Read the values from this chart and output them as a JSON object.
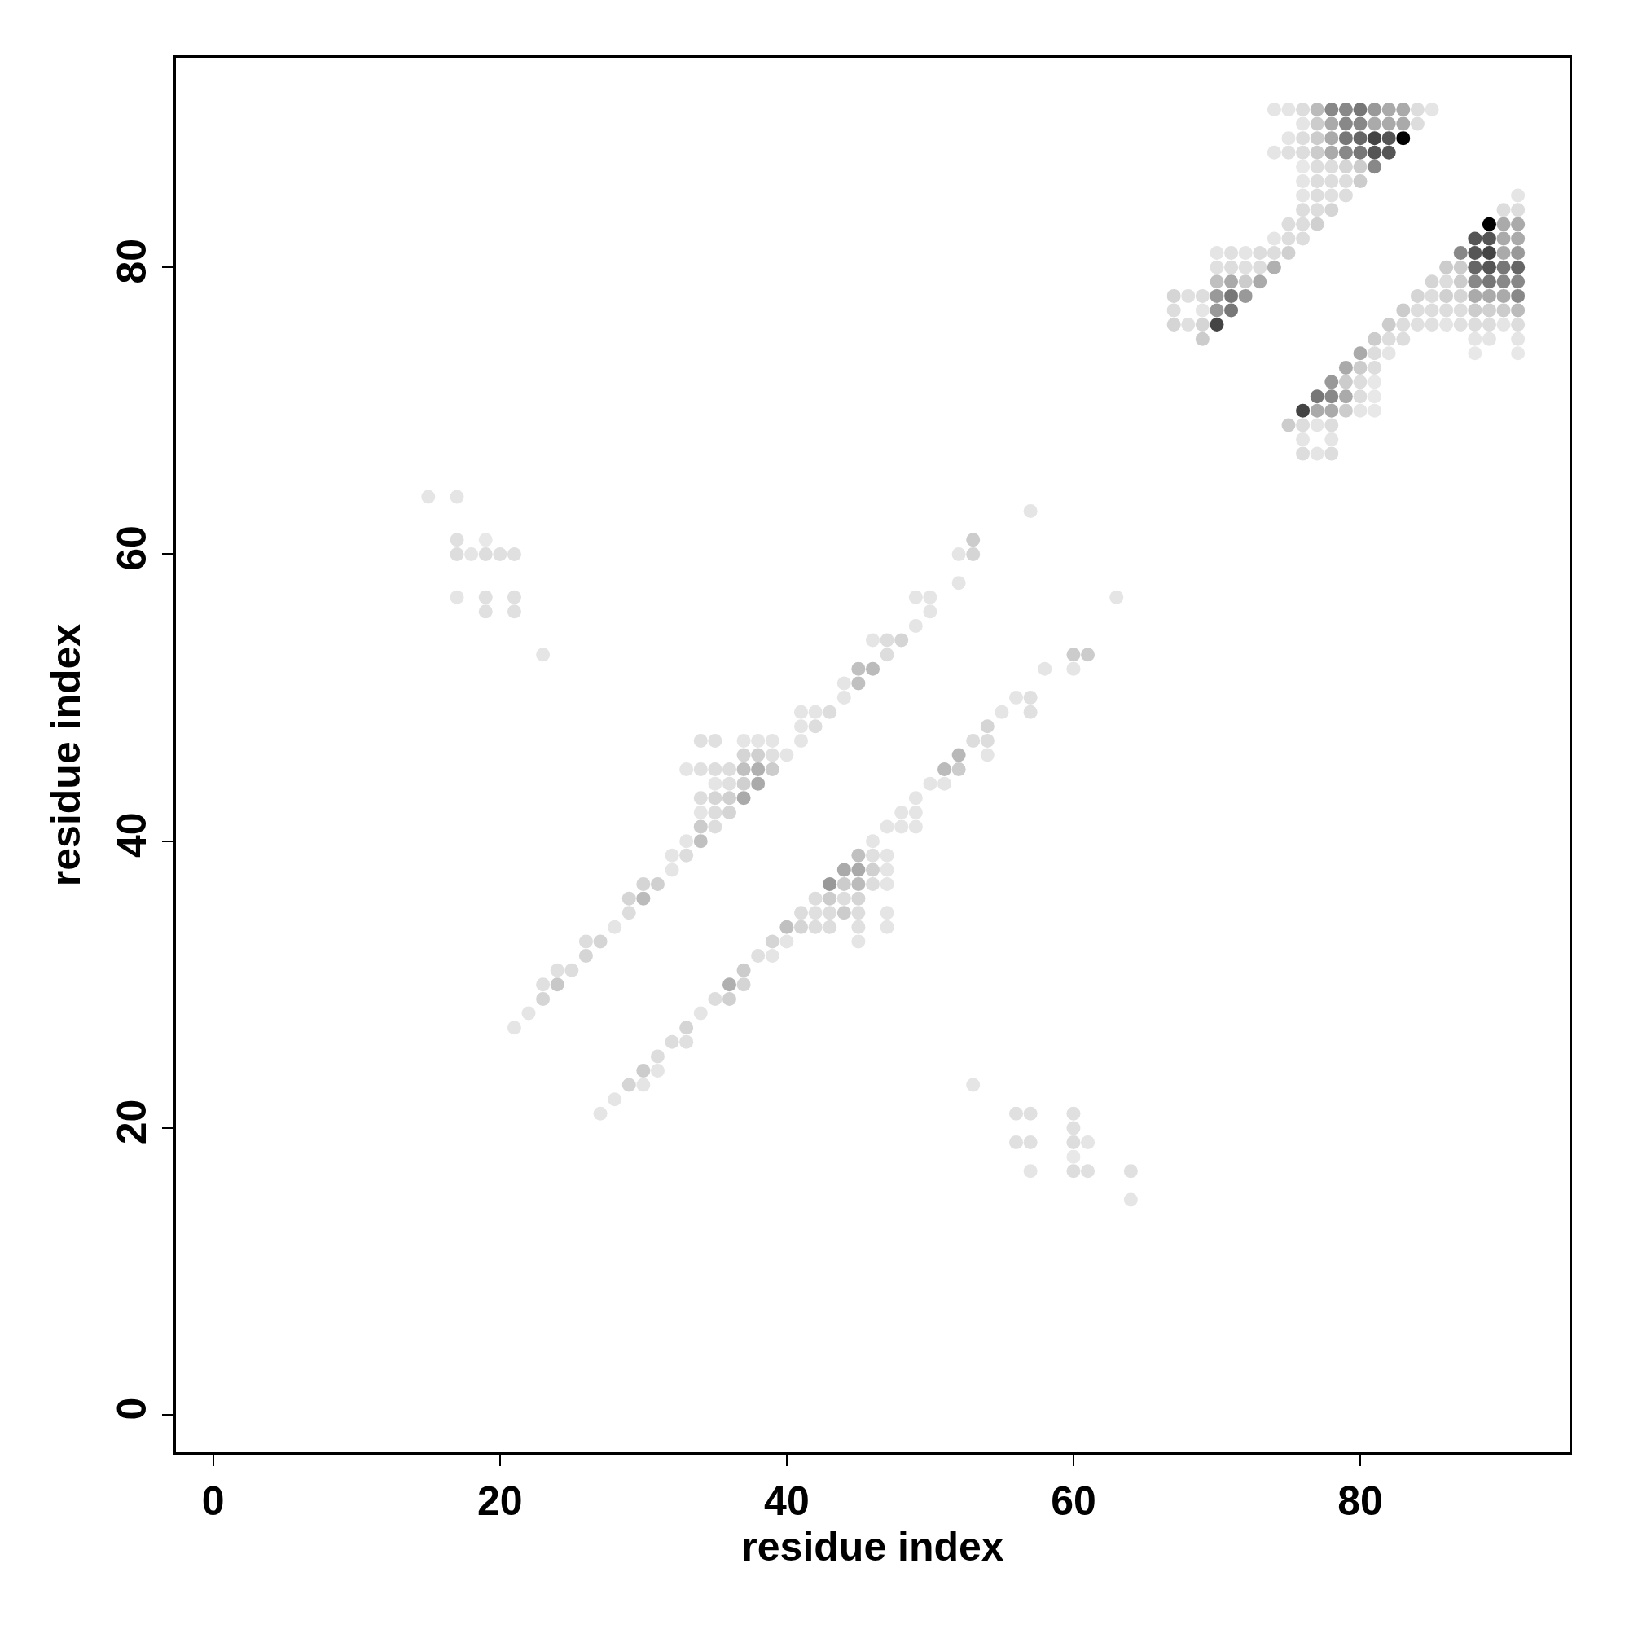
{
  "chart_data": {
    "type": "scatter",
    "xlabel": "residue index",
    "ylabel": "residue index",
    "marker": "circle",
    "xlim": [
      -2.6,
      94.6
    ],
    "ylim": [
      -2.6,
      94.6
    ],
    "xticks": [
      0,
      20,
      40,
      60,
      80
    ],
    "yticks": [
      0,
      20,
      40,
      60,
      80
    ],
    "x": [
      74,
      75,
      76,
      77,
      78,
      79,
      80,
      81,
      82,
      83,
      84,
      85,
      76,
      77,
      78,
      79,
      80,
      81,
      82,
      83,
      84,
      75,
      76,
      77,
      78,
      79,
      80,
      81,
      82,
      83,
      74,
      75,
      76,
      77,
      78,
      79,
      80,
      81,
      82,
      76,
      77,
      78,
      79,
      80,
      81,
      76,
      77,
      78,
      79,
      80,
      76,
      77,
      78,
      79,
      91,
      76,
      77,
      78,
      90,
      91,
      75,
      76,
      77,
      89,
      90,
      91,
      74,
      75,
      76,
      88,
      89,
      90,
      91,
      70,
      71,
      72,
      73,
      74,
      75,
      87,
      88,
      89,
      90,
      91,
      70,
      71,
      72,
      73,
      74,
      86,
      87,
      88,
      89,
      90,
      91,
      70,
      71,
      72,
      73,
      85,
      86,
      87,
      88,
      89,
      90,
      91,
      67,
      68,
      69,
      70,
      71,
      72,
      84,
      85,
      86,
      87,
      88,
      89,
      90,
      91,
      67,
      69,
      70,
      71,
      83,
      84,
      85,
      86,
      87,
      88,
      89,
      90,
      91,
      67,
      68,
      69,
      70,
      82,
      83,
      84,
      85,
      86,
      87,
      88,
      89,
      90,
      91,
      69,
      81,
      82,
      83,
      88,
      89,
      91,
      80,
      81,
      82,
      88,
      91,
      79,
      80,
      81,
      78,
      79,
      80,
      81,
      77,
      78,
      79,
      80,
      81,
      76,
      77,
      78,
      79,
      80,
      81,
      75,
      76,
      77,
      78,
      76,
      78,
      76,
      77,
      78,
      15,
      17,
      57,
      17,
      19,
      53,
      17,
      18,
      19,
      20,
      21,
      52,
      53,
      52,
      17,
      19,
      21,
      49,
      50,
      63,
      19,
      21,
      50,
      49,
      46,
      47,
      48,
      23,
      47,
      60,
      61,
      45,
      46,
      58,
      60,
      44,
      45,
      44,
      56,
      57,
      41,
      42,
      43,
      55,
      57,
      41,
      42,
      54,
      34,
      35,
      37,
      38,
      39,
      41,
      53,
      54,
      37,
      38,
      39,
      40,
      52,
      54,
      33,
      34,
      35,
      36,
      37,
      38,
      39,
      51,
      52,
      35,
      36,
      37,
      38,
      50,
      51,
      34,
      35,
      36,
      37,
      49,
      34,
      35,
      36,
      48,
      49,
      34,
      35,
      47,
      48,
      49,
      33,
      34,
      46,
      32,
      33,
      45,
      46,
      47,
      32,
      44,
      45,
      46,
      47,
      30,
      31,
      43,
      44,
      45,
      46,
      47,
      29,
      30,
      42,
      43,
      44,
      45,
      29,
      41,
      42,
      43,
      44,
      45,
      47,
      28,
      40,
      41,
      42,
      43,
      45,
      47,
      26,
      27,
      39,
      40,
      45,
      26,
      38,
      39,
      24,
      25,
      37,
      23,
      24,
      36,
      37,
      23,
      35,
      36,
      22,
      34,
      21,
      33,
      32,
      33,
      31,
      30,
      31,
      29,
      30,
      53,
      28,
      27,
      56,
      57,
      60,
      60,
      56,
      57,
      60,
      61,
      60,
      57,
      60,
      61,
      64,
      64
    ],
    "values": [
      91,
      91,
      91,
      91,
      91,
      91,
      91,
      91,
      91,
      91,
      91,
      91,
      90,
      90,
      90,
      90,
      90,
      90,
      90,
      90,
      90,
      89,
      89,
      89,
      89,
      89,
      89,
      89,
      89,
      89,
      88,
      88,
      88,
      88,
      88,
      88,
      88,
      88,
      88,
      87,
      87,
      87,
      87,
      87,
      87,
      86,
      86,
      86,
      86,
      86,
      85,
      85,
      85,
      85,
      85,
      84,
      84,
      84,
      84,
      84,
      83,
      83,
      83,
      83,
      83,
      83,
      82,
      82,
      82,
      82,
      82,
      82,
      82,
      81,
      81,
      81,
      81,
      81,
      81,
      81,
      81,
      81,
      81,
      81,
      80,
      80,
      80,
      80,
      80,
      80,
      80,
      80,
      80,
      80,
      80,
      79,
      79,
      79,
      79,
      79,
      79,
      79,
      79,
      79,
      79,
      79,
      78,
      78,
      78,
      78,
      78,
      78,
      78,
      78,
      78,
      78,
      78,
      78,
      78,
      78,
      77,
      77,
      77,
      77,
      77,
      77,
      77,
      77,
      77,
      77,
      77,
      77,
      77,
      76,
      76,
      76,
      76,
      76,
      76,
      76,
      76,
      76,
      76,
      76,
      76,
      76,
      76,
      75,
      75,
      75,
      75,
      75,
      75,
      75,
      74,
      74,
      74,
      74,
      74,
      73,
      73,
      73,
      72,
      72,
      72,
      72,
      71,
      71,
      71,
      71,
      71,
      70,
      70,
      70,
      70,
      70,
      70,
      69,
      69,
      69,
      69,
      68,
      68,
      67,
      67,
      67,
      64,
      64,
      63,
      61,
      61,
      61,
      60,
      60,
      60,
      60,
      60,
      60,
      60,
      58,
      57,
      57,
      57,
      57,
      57,
      57,
      56,
      56,
      56,
      55,
      54,
      54,
      54,
      53,
      53,
      53,
      53,
      52,
      52,
      52,
      52,
      51,
      51,
      50,
      50,
      50,
      49,
      49,
      49,
      49,
      49,
      48,
      48,
      48,
      47,
      47,
      47,
      47,
      47,
      47,
      47,
      47,
      46,
      46,
      46,
      46,
      46,
      46,
      45,
      45,
      45,
      45,
      45,
      45,
      45,
      45,
      45,
      44,
      44,
      44,
      44,
      44,
      44,
      43,
      43,
      43,
      43,
      43,
      42,
      42,
      42,
      42,
      42,
      41,
      41,
      41,
      41,
      41,
      40,
      40,
      40,
      39,
      39,
      39,
      39,
      39,
      38,
      38,
      38,
      38,
      38,
      37,
      37,
      37,
      37,
      37,
      37,
      37,
      36,
      36,
      36,
      36,
      36,
      36,
      35,
      35,
      35,
      35,
      35,
      35,
      35,
      34,
      34,
      34,
      34,
      34,
      34,
      34,
      33,
      33,
      33,
      33,
      33,
      32,
      32,
      32,
      31,
      31,
      31,
      30,
      30,
      30,
      30,
      29,
      29,
      29,
      28,
      28,
      27,
      27,
      26,
      26,
      25,
      24,
      24,
      23,
      23,
      23,
      22,
      21,
      21,
      21,
      21,
      20,
      19,
      19,
      19,
      19,
      18,
      17,
      17,
      17,
      17,
      15
    ],
    "colors": [
      "#e5e5e5",
      "#e5e5e5",
      "#dddddd",
      "#bbbbbb",
      "#888888",
      "#888888",
      "#777777",
      "#999999",
      "#aaaaaa",
      "#aaaaaa",
      "#dddddd",
      "#e5e5e5",
      "#e5e5e5",
      "#cccccc",
      "#aaaaaa",
      "#888888",
      "#888888",
      "#aaaaaa",
      "#aaaaaa",
      "#aaaaaa",
      "#dddddd",
      "#e5e5e5",
      "#dddddd",
      "#cccccc",
      "#aaaaaa",
      "#777777",
      "#666666",
      "#444444",
      "#555555",
      "#000000",
      "#e5e5e5",
      "#e0e0e0",
      "#dddddd",
      "#cccccc",
      "#aaaaaa",
      "#888888",
      "#777777",
      "#555555",
      "#555555",
      "#e8e8e8",
      "#dddddd",
      "#dddddd",
      "#d5d5d5",
      "#cccccc",
      "#888888",
      "#e5e5e5",
      "#dddddd",
      "#dddddd",
      "#dddddd",
      "#cccccc",
      "#e5e5e5",
      "#dddddd",
      "#e0e0e0",
      "#dddddd",
      "#e5e5e5",
      "#dddddd",
      "#dddddd",
      "#d5d5d5",
      "#dddddd",
      "#dddddd",
      "#dddddd",
      "#dddddd",
      "#d0d0d0",
      "#000000",
      "#aaaaaa",
      "#aaaaaa",
      "#e5e5e5",
      "#dddddd",
      "#dddddd",
      "#555555",
      "#555555",
      "#aaaaaa",
      "#aaaaaa",
      "#e5e5e5",
      "#e0e0e0",
      "#e5e5e5",
      "#dddddd",
      "#dddddd",
      "#d0d0d0",
      "#888888",
      "#555555",
      "#444444",
      "#aaaaaa",
      "#999999",
      "#e0e0e0",
      "#dddddd",
      "#e0e0e0",
      "#dddddd",
      "#b0b0b0",
      "#cccccc",
      "#cccccc",
      "#666666",
      "#555555",
      "#777777",
      "#666666",
      "#c0c0c0",
      "#aaaaaa",
      "#cccccc",
      "#aaaaaa",
      "#d5d5d5",
      "#dddddd",
      "#cccccc",
      "#888888",
      "#777777",
      "#888888",
      "#888888",
      "#d5d5d5",
      "#e0e0e0",
      "#dddddd",
      "#999999",
      "#777777",
      "#999999",
      "#d5d5d5",
      "#dddddd",
      "#d0d0d0",
      "#d5d5d5",
      "#aaaaaa",
      "#aaaaaa",
      "#aaaaaa",
      "#888888",
      "#dddddd",
      "#e5e5e5",
      "#999999",
      "#777777",
      "#cccccc",
      "#dddddd",
      "#dddddd",
      "#dddddd",
      "#dddddd",
      "#cccccc",
      "#d0d0d0",
      "#cccccc",
      "#bbbbbb",
      "#d5d5d5",
      "#e0e0e0",
      "#d5d5d5",
      "#444444",
      "#cccccc",
      "#dddddd",
      "#e0e0e0",
      "#e0e0e0",
      "#e5e5e5",
      "#e0e0e0",
      "#dddddd",
      "#dddddd",
      "#e5e5e5",
      "#dddddd",
      "#cccccc",
      "#cccccc",
      "#dddddd",
      "#dddddd",
      "#e5e5e5",
      "#e5e5e5",
      "#e5e5e5",
      "#aaaaaa",
      "#dddddd",
      "#e5e5e5",
      "#e8e8e8",
      "#e8e8e8",
      "#aaaaaa",
      "#cccccc",
      "#dddddd",
      "#999999",
      "#cccccc",
      "#dddddd",
      "#e8e8e8",
      "#777777",
      "#888888",
      "#aaaaaa",
      "#dddddd",
      "#e8e8e8",
      "#444444",
      "#aaaaaa",
      "#aaaaaa",
      "#cccccc",
      "#e5e5e5",
      "#e8e8e8",
      "#cccccc",
      "#dddddd",
      "#e5e5e5",
      "#dddddd",
      "#e5e5e5",
      "#e5e5e5",
      "#dddddd",
      "#e5e5e5",
      "#dddddd",
      "#e5e5e5",
      "#e5e5e5",
      "#e5e5e5",
      "#e0e0e0",
      "#e8e8e8",
      "#cccccc",
      "#dddddd",
      "#e5e5e5",
      "#dddddd",
      "#e0e0e0",
      "#e0e0e0",
      "#e5e5e5",
      "#d5d5d5",
      "#e5e5e5",
      "#e5e5e5",
      "#e0e0e0",
      "#e0e0e0",
      "#e5e5e5",
      "#e5e5e5",
      "#e5e5e5",
      "#e0e0e0",
      "#e0e0e0",
      "#e5e5e5",
      "#e5e5e5",
      "#e5e5e5",
      "#dddddd",
      "#d5d5d5",
      "#e5e5e5",
      "#dddddd",
      "#cccccc",
      "#cccccc",
      "#c0c0c0",
      "#bbbbbb",
      "#e5e5e5",
      "#e5e5e5",
      "#e5e5e5",
      "#c0c0c0",
      "#e5e5e5",
      "#e5e5e5",
      "#e0e0e0",
      "#e5e5e5",
      "#e5e5e5",
      "#dddddd",
      "#e5e5e5",
      "#e0e0e0",
      "#e5e5e5",
      "#dddddd",
      "#d5d5d5",
      "#e0e0e0",
      "#e0e0e0",
      "#e5e5e5",
      "#e5e5e5",
      "#e5e5e5",
      "#e5e5e5",
      "#dddddd",
      "#dddddd",
      "#d5d5d5",
      "#d0d0d0",
      "#e0e0e0",
      "#e5e5e5",
      "#b8b8b8",
      "#e5e5e5",
      "#e5e5e5",
      "#e0e0e0",
      "#dddddd",
      "#dddddd",
      "#c0c0c0",
      "#b0b0b0",
      "#cccccc",
      "#bbbbbb",
      "#cccccc",
      "#e5e5e5",
      "#e0e0e0",
      "#d0d0d0",
      "#aaaaaa",
      "#e5e5e5",
      "#e5e5e5",
      "#dddddd",
      "#d5d5d5",
      "#d0d0d0",
      "#aaaaaa",
      "#e5e5e5",
      "#e5e5e5",
      "#dddddd",
      "#d5d5d5",
      "#e5e5e5",
      "#e5e5e5",
      "#cccccc",
      "#dddddd",
      "#e5e5e5",
      "#e5e5e5",
      "#e5e5e5",
      "#e5e5e5",
      "#c0c0c0",
      "#e5e5e5",
      "#e5e5e5",
      "#dddddd",
      "#c0c0c0",
      "#e0e0e0",
      "#e5e5e5",
      "#e5e5e5",
      "#aaaaaa",
      "#aaaaaa",
      "#d0d0d0",
      "#e5e5e5",
      "#d5d5d5",
      "#d0d0d0",
      "#999999",
      "#cccccc",
      "#bbbbbb",
      "#dddddd",
      "#e5e5e5",
      "#d5d5d5",
      "#bbbbbb",
      "#dddddd",
      "#cccccc",
      "#dddddd",
      "#d5d5d5",
      "#dddddd",
      "#dddddd",
      "#e0e0e0",
      "#dddddd",
      "#cccccc",
      "#dddddd",
      "#e5e5e5",
      "#e5e5e5",
      "#c0c0c0",
      "#d5d5d5",
      "#dddddd",
      "#dddddd",
      "#e0e0e0",
      "#e5e5e5",
      "#dddddd",
      "#d5d5d5",
      "#d5d5d5",
      "#e5e5e5",
      "#e5e5e5",
      "#d5d5d5",
      "#e0e0e0",
      "#e5e5e5",
      "#e0e0e0",
      "#dddddd",
      "#cccccc",
      "#e0e0e0",
      "#c8c8c8",
      "#b0b0b0",
      "#d5d5d5",
      "#d5d5d5",
      "#dddddd",
      "#d0d0d0",
      "#e5e5e5",
      "#e5e5e5",
      "#e5e5e5",
      "#d5d5d5",
      "#dddddd",
      "#e0e0e0",
      "#dddddd",
      "#cccccc",
      "#e5e5e5",
      "#d5d5d5",
      "#e5e5e5",
      "#e5e5e5",
      "#e5e5e5",
      "#e5e5e5",
      "#e0e0e0",
      "#e0e0e0",
      "#e0e0e0",
      "#e0e0e0",
      "#e0e0e0",
      "#e0e0e0",
      "#dddddd",
      "#e5e5e5",
      "#e8e8e8",
      "#e5e5e5",
      "#dddddd",
      "#e0e0e0",
      "#e0e0e0",
      "#e5e5e5"
    ]
  }
}
